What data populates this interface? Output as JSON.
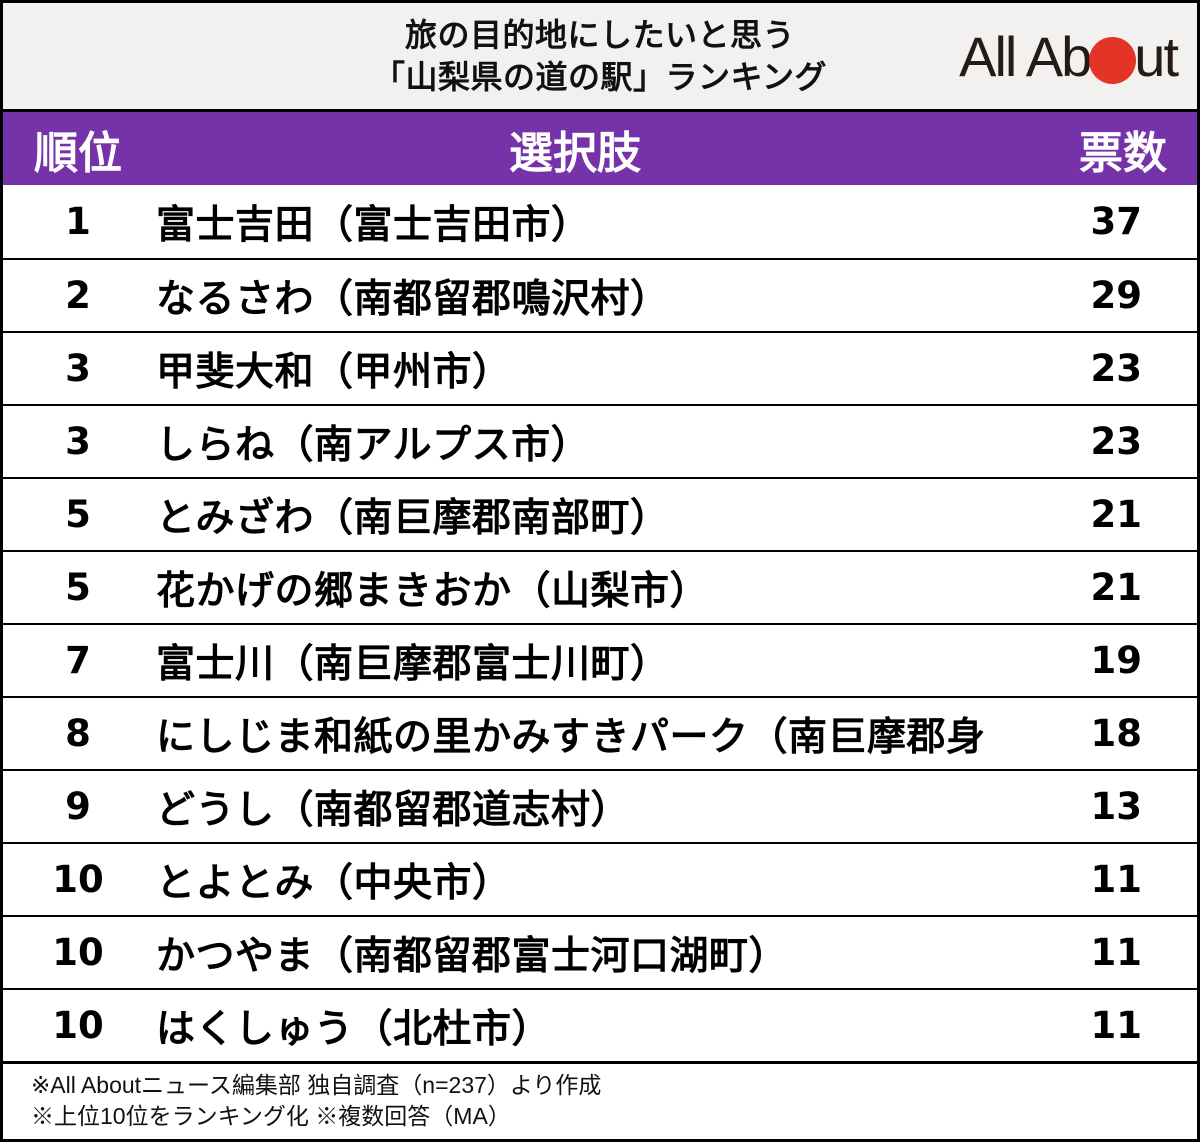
{
  "header": {
    "title_line1": "旅の目的地にしたいと思う",
    "title_line2": "「山梨県の道の駅」ランキング",
    "logo": {
      "name": "All About",
      "part1": "All Ab",
      "part2": "ut"
    }
  },
  "table": {
    "columns": {
      "rank": "順位",
      "choice": "選択肢",
      "votes": "票数"
    },
    "rows": [
      {
        "rank": "1",
        "choice": "富士吉田（富士吉田市）",
        "votes": "37"
      },
      {
        "rank": "2",
        "choice": "なるさわ（南都留郡鳴沢村）",
        "votes": "29"
      },
      {
        "rank": "3",
        "choice": "甲斐大和（甲州市）",
        "votes": "23"
      },
      {
        "rank": "3",
        "choice": "しらね（南アルプス市）",
        "votes": "23"
      },
      {
        "rank": "5",
        "choice": "とみざわ（南巨摩郡南部町）",
        "votes": "21"
      },
      {
        "rank": "5",
        "choice": "花かげの郷まきおか（山梨市）",
        "votes": "21"
      },
      {
        "rank": "7",
        "choice": "富士川（南巨摩郡富士川町）",
        "votes": "19"
      },
      {
        "rank": "8",
        "choice": "にしじま和紙の里かみすきパーク（南巨摩郡身",
        "votes": "18"
      },
      {
        "rank": "9",
        "choice": "どうし（南都留郡道志村）",
        "votes": "13"
      },
      {
        "rank": "10",
        "choice": "とよとみ（中央市）",
        "votes": "11"
      },
      {
        "rank": "10",
        "choice": "かつやま（南都留郡富士河口湖町）",
        "votes": "11"
      },
      {
        "rank": "10",
        "choice": "はくしゅう（北杜市）",
        "votes": "11"
      }
    ]
  },
  "footer": {
    "note1": "※All Aboutニュース編集部 独自調査（n=237）より作成",
    "note2": "※上位10位をランキング化 ※複数回答（MA）"
  },
  "colors": {
    "accent_purple": "#7632A8",
    "logo_red": "#E23528",
    "title_band_bg": "#F2F1EF"
  },
  "chart_data": {
    "type": "table",
    "title": "旅の目的地にしたいと思う「山梨県の道の駅」ランキング",
    "columns": [
      "順位",
      "選択肢",
      "票数"
    ],
    "categories": [
      "富士吉田（富士吉田市）",
      "なるさわ（南都留郡鳴沢村）",
      "甲斐大和（甲州市）",
      "しらね（南アルプス市）",
      "とみざわ（南巨摩郡南部町）",
      "花かげの郷まきおか（山梨市）",
      "富士川（南巨摩郡富士川町）",
      "にしじま和紙の里かみすきパーク（南巨摩郡身",
      "どうし（南都留郡道志村）",
      "とよとみ（中央市）",
      "かつやま（南都留郡富士河口湖町）",
      "はくしゅう（北杜市）"
    ],
    "ranks": [
      1,
      2,
      3,
      3,
      5,
      5,
      7,
      8,
      9,
      10,
      10,
      10
    ],
    "values": [
      37,
      29,
      23,
      23,
      21,
      21,
      19,
      18,
      13,
      11,
      11,
      11
    ],
    "sample_size": 237
  }
}
